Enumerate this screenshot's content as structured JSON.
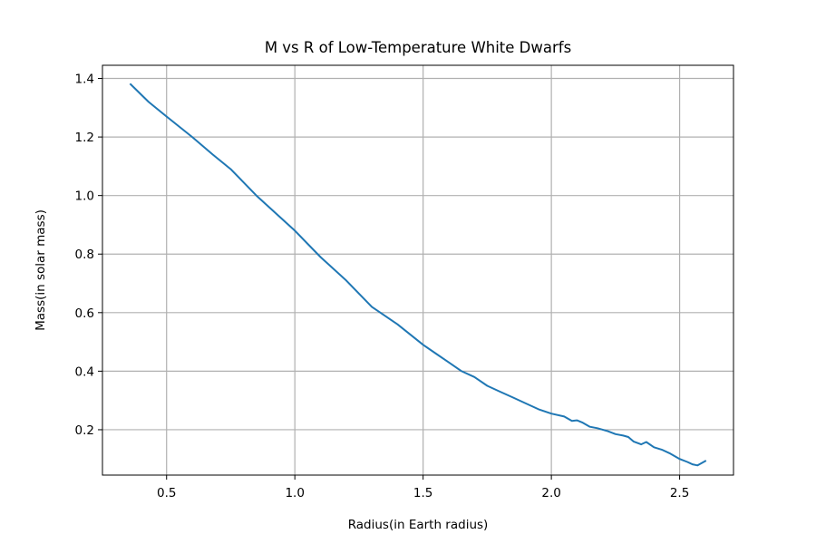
{
  "chart_data": {
    "type": "line",
    "title": "M vs R of Low-Temperature White Dwarfs",
    "xlabel": "Radius(in Earth radius)",
    "ylabel": "Mass(in solar mass)",
    "xlim": [
      0.25,
      2.71
    ],
    "ylim": [
      0.045,
      1.445
    ],
    "xticks": [
      0.5,
      1.0,
      1.5,
      2.0,
      2.5
    ],
    "xtick_labels": [
      "0.5",
      "1.0",
      "1.5",
      "2.0",
      "2.5"
    ],
    "yticks": [
      0.2,
      0.4,
      0.6,
      0.8,
      1.0,
      1.2,
      1.4
    ],
    "ytick_labels": [
      "0.2",
      "0.4",
      "0.6",
      "0.8",
      "1.0",
      "1.2",
      "1.4"
    ],
    "grid": true,
    "series": [
      {
        "color": "#1f77b4",
        "x": [
          0.36,
          0.43,
          0.5,
          0.6,
          0.68,
          0.75,
          0.85,
          1.0,
          1.1,
          1.2,
          1.3,
          1.4,
          1.5,
          1.55,
          1.6,
          1.65,
          1.7,
          1.75,
          1.8,
          1.85,
          1.9,
          1.95,
          2.0,
          2.05,
          2.08,
          2.1,
          2.12,
          2.15,
          2.18,
          2.22,
          2.25,
          2.28,
          2.3,
          2.32,
          2.35,
          2.37,
          2.4,
          2.43,
          2.46,
          2.5,
          2.53,
          2.55,
          2.57,
          2.6
        ],
        "y": [
          1.38,
          1.32,
          1.27,
          1.2,
          1.14,
          1.09,
          1.0,
          0.88,
          0.79,
          0.71,
          0.62,
          0.56,
          0.49,
          0.46,
          0.43,
          0.4,
          0.38,
          0.35,
          0.33,
          0.31,
          0.29,
          0.27,
          0.255,
          0.245,
          0.23,
          0.232,
          0.225,
          0.21,
          0.205,
          0.195,
          0.185,
          0.18,
          0.175,
          0.16,
          0.15,
          0.158,
          0.14,
          0.132,
          0.12,
          0.1,
          0.09,
          0.082,
          0.078,
          0.093
        ]
      }
    ]
  }
}
